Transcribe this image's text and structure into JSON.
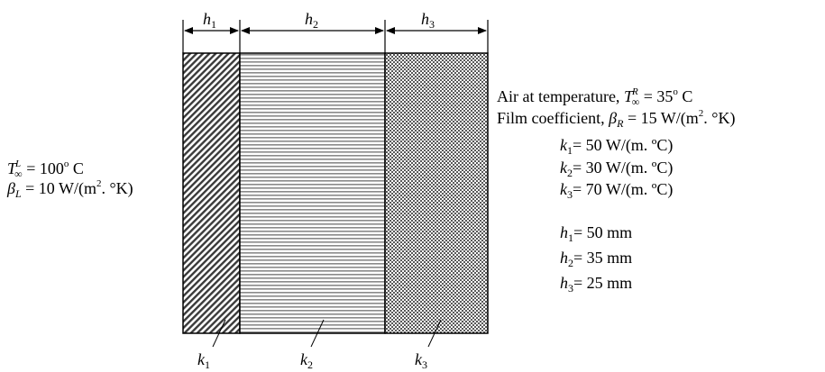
{
  "dimensions": {
    "top": {
      "h1": {
        "var": "h",
        "sub": "1"
      },
      "h2": {
        "var": "h",
        "sub": "2"
      },
      "h3": {
        "var": "h",
        "sub": "3"
      }
    }
  },
  "layers": {
    "k1": {
      "var": "k",
      "sub": "1"
    },
    "k2": {
      "var": "k",
      "sub": "2"
    },
    "k3": {
      "var": "k",
      "sub": "3"
    }
  },
  "left": {
    "temp": {
      "sym": "T",
      "sub": "∞",
      "sup": "L",
      "value": " = 100",
      "deg": "o",
      "unit": " C"
    },
    "film": {
      "sym": "β",
      "sub": "L",
      "value": " = 10 W/(m",
      "sup": "2",
      "tail": ". °K)"
    }
  },
  "right": {
    "air": {
      "prefix": "Air at temperature, ",
      "sym": "T",
      "sub": "∞",
      "sup": "R",
      "value": " = 35",
      "deg": "o",
      "unit": " C"
    },
    "film": {
      "prefix": "Film coefficient, ",
      "sym": "β",
      "sub": "R",
      "value": " = 15 W/(m",
      "sup": "2",
      "tail": ". °K)"
    },
    "props": [
      {
        "var": "k",
        "sub": "1",
        "text": "= 50 W/(m. ºC)"
      },
      {
        "var": "k",
        "sub": "2",
        "text": "= 30 W/(m. ºC)"
      },
      {
        "var": "k",
        "sub": "3",
        "text": "= 70 W/(m. ºC)"
      },
      {
        "var": "h",
        "sub": "1",
        "text": "= 50 mm"
      },
      {
        "var": "h",
        "sub": "2",
        "text": "= 35 mm"
      },
      {
        "var": "h",
        "sub": "3",
        "text": "= 25 mm"
      }
    ]
  },
  "colors": {
    "stroke": "#000000",
    "layer1_hatch": "#3a3a3a",
    "layer2_lines": "#8a8a8a",
    "layer3_dots": "#4a4a4a",
    "background": "#ffffff"
  }
}
